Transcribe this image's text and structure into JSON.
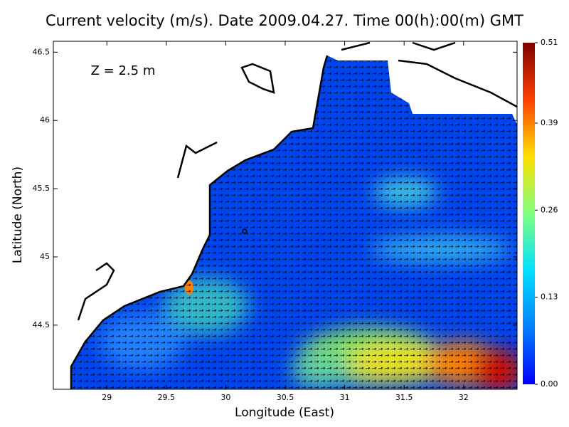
{
  "chart_data": {
    "type": "map",
    "title": "Current velocity (m/s). Date 2009.04.27. Time 00(h):00(m) GMT",
    "annotation": "Z = 2.5 m",
    "x_label": "Longitude (East)",
    "y_label": "Latitude (North)",
    "xlim": [
      28.55,
      32.45
    ],
    "ylim": [
      44.03,
      46.58
    ],
    "xticks": [
      29,
      29.5,
      30,
      30.5,
      31,
      31.5,
      32
    ],
    "yticks": [
      44.5,
      45,
      45.5,
      46,
      46.5
    ],
    "colorbar": {
      "lim": [
        0,
        0.51
      ],
      "ticks": [
        {
          "value": 0,
          "label": "0.00"
        },
        0.13,
        0.26,
        0.39,
        0.51
      ],
      "colormap": [
        "#0000ff",
        "#0080ff",
        "#00e0ff",
        "#80ff80",
        "#ffe000",
        "#ff4000",
        "#800000"
      ]
    }
  }
}
